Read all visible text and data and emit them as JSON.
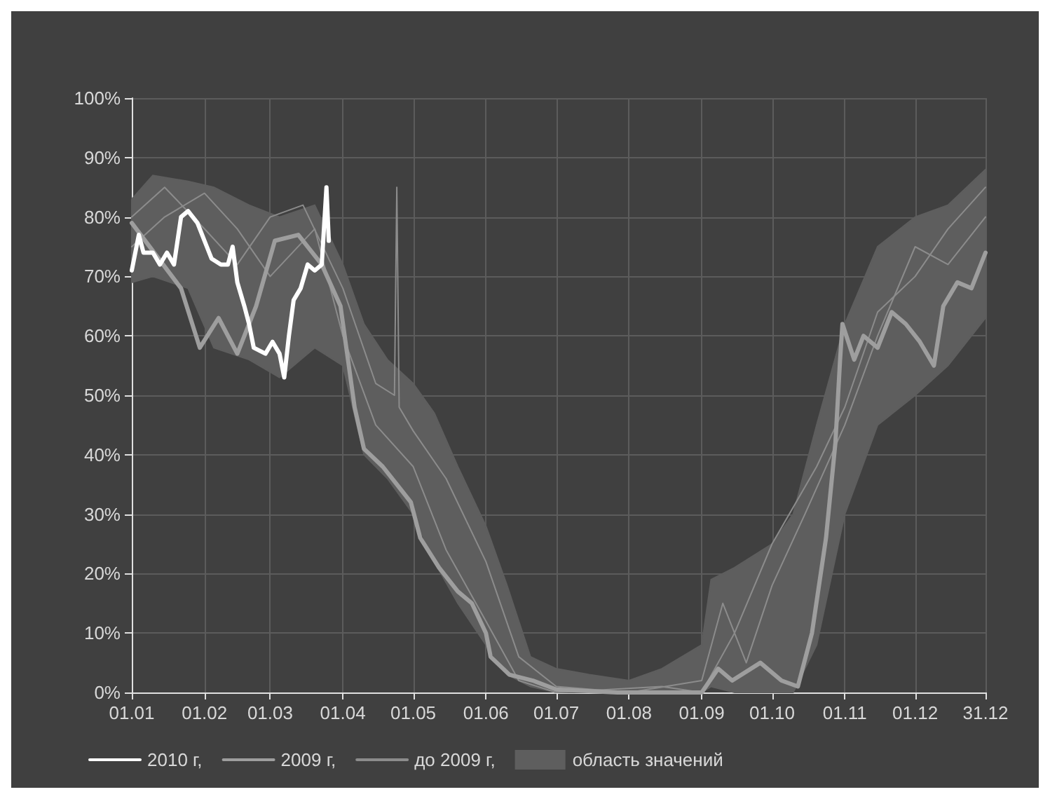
{
  "chart_data": {
    "type": "line",
    "xlim": [
      "--01-01",
      "--12-31"
    ],
    "xticks": [
      {
        "value": "--01-01",
        "label": "01.01"
      },
      {
        "value": "--02-01",
        "label": "01.02"
      },
      {
        "value": "--03-01",
        "label": "01.03"
      },
      {
        "value": "--04-01",
        "label": "01.04"
      },
      {
        "value": "--05-01",
        "label": "01.05"
      },
      {
        "value": "--06-01",
        "label": "01.06"
      },
      {
        "value": "--07-01",
        "label": "01.07"
      },
      {
        "value": "--08-01",
        "label": "01.08"
      },
      {
        "value": "--09-01",
        "label": "01.09"
      },
      {
        "value": "--10-01",
        "label": "01.10"
      },
      {
        "value": "--11-01",
        "label": "01.11"
      },
      {
        "value": "--12-01",
        "label": "01.12"
      },
      {
        "value": "--12-31",
        "label": "31.12"
      }
    ],
    "ylim": [
      0,
      100
    ],
    "yticks": [
      {
        "value": 0,
        "label": "0%"
      },
      {
        "value": 10,
        "label": "10%"
      },
      {
        "value": 20,
        "label": "20%"
      },
      {
        "value": 30,
        "label": "30%"
      },
      {
        "value": 40,
        "label": "40%"
      },
      {
        "value": 50,
        "label": "50%"
      },
      {
        "value": 60,
        "label": "60%"
      },
      {
        "value": 70,
        "label": "70%"
      },
      {
        "value": 80,
        "label": "80%"
      },
      {
        "value": 90,
        "label": "90%"
      },
      {
        "value": 100,
        "label": "100%"
      }
    ],
    "grid": true,
    "legend": "bottom",
    "series": [
      {
        "name": "область значений",
        "type": "area",
        "color": "#5e5e5e",
        "x": [
          "--01-01",
          "--01-10",
          "--01-25",
          "--02-05",
          "--02-20",
          "--03-05",
          "--03-20",
          "--04-01",
          "--04-10",
          "--04-20",
          "--05-01",
          "--05-10",
          "--05-20",
          "--06-01",
          "--06-10",
          "--06-20",
          "--07-01",
          "--07-15",
          "--08-01",
          "--08-15",
          "--09-01",
          "--09-05",
          "--09-15",
          "--10-01",
          "--10-10",
          "--10-20",
          "--11-01",
          "--11-15",
          "--12-01",
          "--12-15",
          "--12-31"
        ],
        "values": [
          null,
          null,
          null,
          null,
          null,
          null,
          null,
          null,
          null,
          null,
          null,
          null,
          null,
          null,
          null,
          null,
          null,
          null,
          null,
          null,
          null,
          null,
          null,
          null,
          null,
          null,
          null,
          null,
          null,
          null,
          null
        ],
        "lower": [
          69,
          70,
          68,
          58,
          56,
          53,
          58,
          55,
          40,
          36,
          30,
          22,
          15,
          8,
          3,
          1,
          0,
          0,
          0,
          0,
          0,
          1,
          0,
          0,
          0,
          8,
          30,
          45,
          50,
          55,
          63
        ],
        "upper": [
          83,
          87,
          86,
          85,
          82,
          80,
          82,
          72,
          62,
          56,
          52,
          47,
          38,
          28,
          18,
          6,
          4,
          3,
          2,
          4,
          8,
          19,
          21,
          25,
          30,
          45,
          62,
          75,
          80,
          82,
          88
        ]
      },
      {
        "name": "до 2009 г,",
        "color": "#8c8c8c",
        "x": [
          "--01-01",
          "--01-15",
          "--02-01",
          "--02-15",
          "--03-01",
          "--03-15",
          "--04-01",
          "--04-15",
          "--04-23",
          "--04-24",
          "--04-25",
          "--05-01",
          "--05-15",
          "--06-01",
          "--06-15",
          "--07-01",
          "--08-01",
          "--09-01",
          "--09-10",
          "--09-20",
          "--10-01",
          "--10-15",
          "--11-01",
          "--11-15",
          "--12-01",
          "--12-15",
          "--12-31"
        ],
        "values": [
          80,
          85,
          78,
          72,
          80,
          82,
          68,
          52,
          50,
          85,
          48,
          44,
          36,
          22,
          6,
          1,
          0,
          2,
          15,
          5,
          18,
          30,
          45,
          60,
          75,
          72,
          80
        ]
      },
      {
        "color": "#8c8c8c",
        "x": [
          "--01-01",
          "--01-15",
          "--02-01",
          "--02-15",
          "--03-01",
          "--03-20",
          "--04-01",
          "--04-15",
          "--05-01",
          "--05-15",
          "--06-01",
          "--06-15",
          "--07-01",
          "--08-15",
          "--09-01",
          "--09-15",
          "--10-01",
          "--10-20",
          "--11-01",
          "--11-15",
          "--12-01",
          "--12-15",
          "--12-31"
        ],
        "values": [
          75,
          80,
          84,
          78,
          70,
          78,
          60,
          45,
          38,
          24,
          12,
          2,
          0,
          1,
          0,
          10,
          25,
          38,
          48,
          64,
          70,
          78,
          85
        ]
      },
      {
        "name": "2009 г,",
        "color": "#9e9e9e",
        "x": [
          "--01-01",
          "--01-22",
          "--01-30",
          "--02-07",
          "--02-15",
          "--02-23",
          "--03-03",
          "--03-13",
          "--03-23",
          "--03-31",
          "--04-06",
          "--04-10",
          "--04-18",
          "--04-24",
          "--04-30",
          "--05-04",
          "--05-12",
          "--05-20",
          "--05-26",
          "--06-01",
          "--06-03",
          "--06-11",
          "--06-21",
          "--07-01",
          "--07-27",
          "--09-01",
          "--09-08",
          "--09-14",
          "--09-26",
          "--10-05",
          "--10-12",
          "--10-18",
          "--10-24",
          "--10-28",
          "--10-30",
          "--10-31",
          "--11-05",
          "--11-09",
          "--11-15",
          "--11-21",
          "--11-27",
          "--12-03",
          "--12-09",
          "--12-13",
          "--12-19",
          "--12-25",
          "--12-31"
        ],
        "values": [
          79,
          68,
          58,
          63,
          57,
          65,
          76,
          77,
          72,
          65,
          48,
          41,
          38,
          35,
          32,
          26,
          21,
          17,
          15,
          10,
          6,
          3,
          2,
          0.5,
          0,
          0,
          4,
          2,
          5,
          2,
          1,
          10,
          26,
          42,
          56,
          62,
          56,
          60,
          58,
          64,
          62,
          59,
          55,
          65,
          69,
          68,
          74
        ]
      },
      {
        "name": "2010 г,",
        "color": "#ffffff",
        "x": [
          "--01-01",
          "--01-04",
          "--01-06",
          "--01-10",
          "--01-13",
          "--01-16",
          "--01-19",
          "--01-22",
          "--01-25",
          "--01-29",
          "--02-02",
          "--02-04",
          "--02-08",
          "--02-11",
          "--02-13",
          "--02-15",
          "--02-18",
          "--02-20",
          "--02-22",
          "--02-27",
          "--03-02",
          "--03-05",
          "--03-07",
          "--03-09",
          "--03-11",
          "--03-14",
          "--03-17",
          "--03-20",
          "--03-23",
          "--03-25",
          "--03-26"
        ],
        "values": [
          71,
          77,
          74,
          74,
          72,
          74,
          72,
          80,
          81,
          79,
          75,
          73,
          72,
          72,
          75,
          69,
          65,
          62,
          58,
          57,
          59,
          57,
          53,
          60,
          66,
          68,
          72,
          71,
          72,
          85,
          76
        ]
      }
    ]
  }
}
